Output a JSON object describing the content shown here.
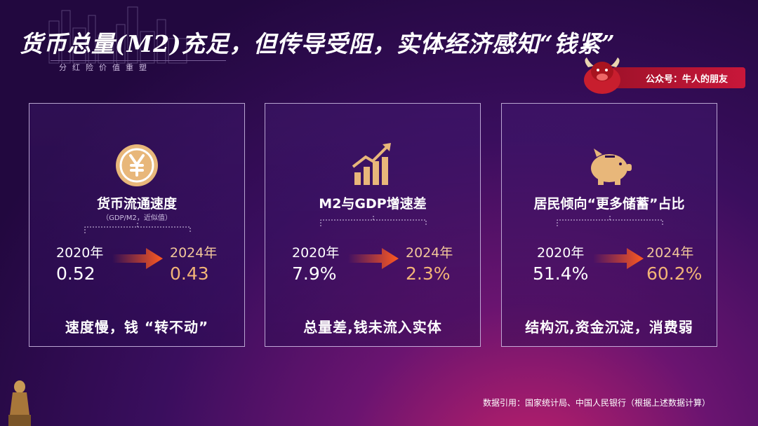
{
  "header": {
    "title": "货币总量(M2)充足，但传导受阻，实体经济感知“钱紧”",
    "subtitle": "分红险价值重塑"
  },
  "badge": {
    "text": "公众号：牛人的朋友"
  },
  "cards": [
    {
      "icon": "yen-coin-icon",
      "title": "货币流通速度",
      "note": "（GDP/M2，近似值）",
      "from_year": "2020年",
      "to_year": "2024年",
      "from_value": "0.52",
      "to_value": "0.43",
      "conclusion": "速度慢，钱 “转不动”"
    },
    {
      "icon": "growth-bar-chart-icon",
      "title": "M2与GDP增速差",
      "note": "",
      "from_year": "2020年",
      "to_year": "2024年",
      "from_value": "7.9%",
      "to_value": "2.3%",
      "conclusion": "总量差,钱未流入实体"
    },
    {
      "icon": "piggy-bank-icon",
      "title": "居民倾向“更多储蓄”占比",
      "note": "",
      "from_year": "2020年",
      "to_year": "2024年",
      "from_value": "51.4%",
      "to_value": "60.2%",
      "conclusion": "结构沉,资金沉淀，消费弱"
    }
  ],
  "footer": {
    "source": "数据引用：国家统计局、中国人民银行（根据上述数据计算）"
  },
  "colors": {
    "accent_gold": "#e8b77a",
    "arrow_orange": "#ff5a1f",
    "badge_red": "#c8173a"
  }
}
